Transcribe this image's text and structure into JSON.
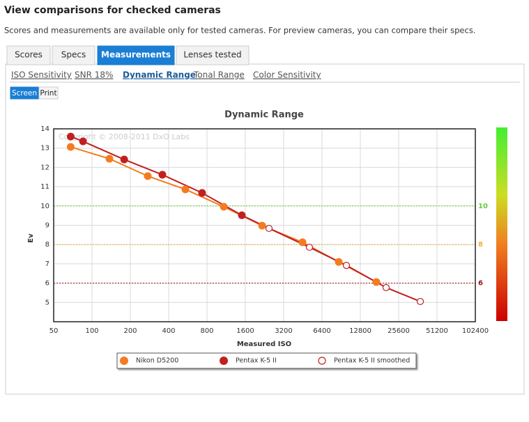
{
  "header": {
    "title": "View comparisons for checked cameras",
    "subtitle": "Scores and measurements are available only for tested cameras. For preview cameras, you can compare their specs."
  },
  "tabs": [
    "Scores",
    "Specs",
    "Measurements",
    "Lenses tested"
  ],
  "subtabs": [
    "ISO Sensitivity",
    "SNR 18%",
    "Dynamic Range",
    "Tonal Range",
    "Color Sensitivity"
  ],
  "modes": [
    "Screen",
    "Print"
  ],
  "chart_data": {
    "type": "line",
    "title": "Dynamic Range",
    "watermark": "Copyright © 2008-2011 DxO Labs",
    "x_label": "Measured ISO",
    "y_label": "Ev",
    "x_scale": "log2",
    "xlim": [
      50,
      102400
    ],
    "xticks": [
      50,
      100,
      200,
      400,
      800,
      1600,
      3200,
      6400,
      12800,
      25600,
      51200,
      102400
    ],
    "ylim": [
      4,
      14
    ],
    "yticks": [
      5,
      6,
      7,
      8,
      9,
      10,
      11,
      12,
      13,
      14
    ],
    "grid": true,
    "reference_lines": [
      {
        "value": 10,
        "color": "#66cc33"
      },
      {
        "value": 8,
        "color": "#f0b030"
      },
      {
        "value": 6,
        "color": "#a01010"
      }
    ],
    "series": [
      {
        "name": "Nikon D5200",
        "color": "#f47b20",
        "marker": "filled",
        "x": [
          68,
          137,
          274,
          541,
          1083,
          2166,
          4500,
          8660,
          17100
        ],
        "values": [
          13.06,
          12.45,
          11.55,
          10.86,
          9.96,
          8.98,
          8.12,
          7.1,
          6.06
        ]
      },
      {
        "name": "Pentax K-5 II",
        "color": "#c0201f",
        "marker": "filled",
        "x": [
          68,
          85,
          179,
          357,
          732,
          1502
        ],
        "values": [
          13.6,
          13.35,
          12.41,
          11.62,
          10.68,
          9.52
        ]
      },
      {
        "name": "Pentax K-5 II smoothed",
        "color": "#c0201f",
        "marker": "open",
        "x": [
          2456,
          5100,
          9950,
          20400,
          37850
        ],
        "values": [
          8.84,
          7.86,
          6.92,
          5.77,
          5.05
        ]
      }
    ]
  }
}
